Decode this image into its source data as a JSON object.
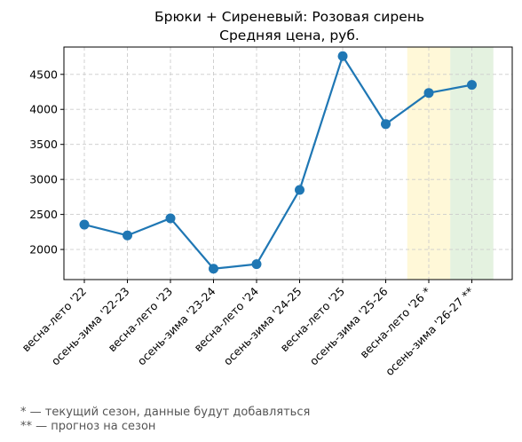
{
  "chart_data": {
    "type": "line",
    "title": "Брюки + Сиреневый: Розовая сирень",
    "subtitle": "Средняя цена, руб.",
    "xlabel": "",
    "ylabel": "",
    "categories": [
      "весна-лето '22",
      "осень-зима '22-23",
      "весна-лето '23",
      "осень-зима '23-24",
      "весна-лето '24",
      "осень-зима '24-25",
      "весна-лето '25",
      "осень-зима '25-26",
      "весна-лето '26 *",
      "осень-зима '26-27 **"
    ],
    "series": [
      {
        "values": [
          2355,
          2200,
          2445,
          1725,
          1790,
          2850,
          4760,
          3790,
          4235,
          4350
        ]
      }
    ],
    "ylim": [
      1570,
      4890
    ],
    "yticks": [
      2000,
      2500,
      3000,
      3500,
      4000,
      4500
    ],
    "grid": true,
    "highlights": [
      {
        "category": "весна-лето '26 *",
        "color": "#fff8d8"
      },
      {
        "category": "осень-зима '26-27 **",
        "color": "#e4f2e0"
      }
    ],
    "line_color": "#1f77b4"
  },
  "footnotes": [
    "* — текущий сезон, данные будут добавляться",
    "** — прогноз на сезон"
  ]
}
